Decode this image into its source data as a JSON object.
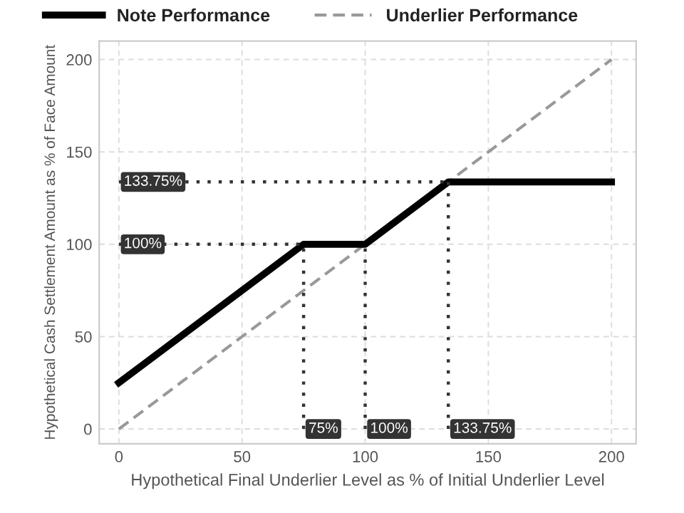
{
  "chart_data": {
    "type": "line",
    "xlabel": "Hypothetical Final Underlier Level as % of Initial Underlier Level",
    "ylabel": "Hypothetical Cash Settlement Amount as % of Face Amount",
    "series": [
      {
        "name": "Note Performance",
        "color": "#000000",
        "x": [
          0,
          75,
          100,
          133.75,
          200
        ],
        "values": [
          25,
          100,
          100,
          133.75,
          133.75
        ],
        "line_style": "solid"
      },
      {
        "name": "Underlier Performance",
        "color": "#999999",
        "x": [
          0,
          200
        ],
        "values": [
          0,
          200
        ],
        "line_style": "dashed"
      }
    ],
    "ref_lines": [
      {
        "axis": "y",
        "value": 133.75,
        "label": "133.75%",
        "color": "#333333",
        "line_style": "dotted"
      },
      {
        "axis": "y",
        "value": 100,
        "label": "100%",
        "color": "#333333",
        "line_style": "dotted"
      },
      {
        "axis": "x",
        "value": 75,
        "label": "75%",
        "color": "#333333",
        "line_style": "dotted"
      },
      {
        "axis": "x",
        "value": 100,
        "label": "100%",
        "color": "#333333",
        "line_style": "dotted"
      },
      {
        "axis": "x",
        "value": 133.75,
        "label": "133.75%",
        "color": "#333333",
        "line_style": "dotted"
      }
    ],
    "xlim": [
      -8,
      210
    ],
    "ylim": [
      -8,
      210
    ],
    "xticks": [
      0,
      50,
      100,
      150,
      200
    ],
    "yticks": [
      0,
      50,
      100,
      150,
      200
    ],
    "grid": true,
    "legend": "top left",
    "marker": "none"
  }
}
